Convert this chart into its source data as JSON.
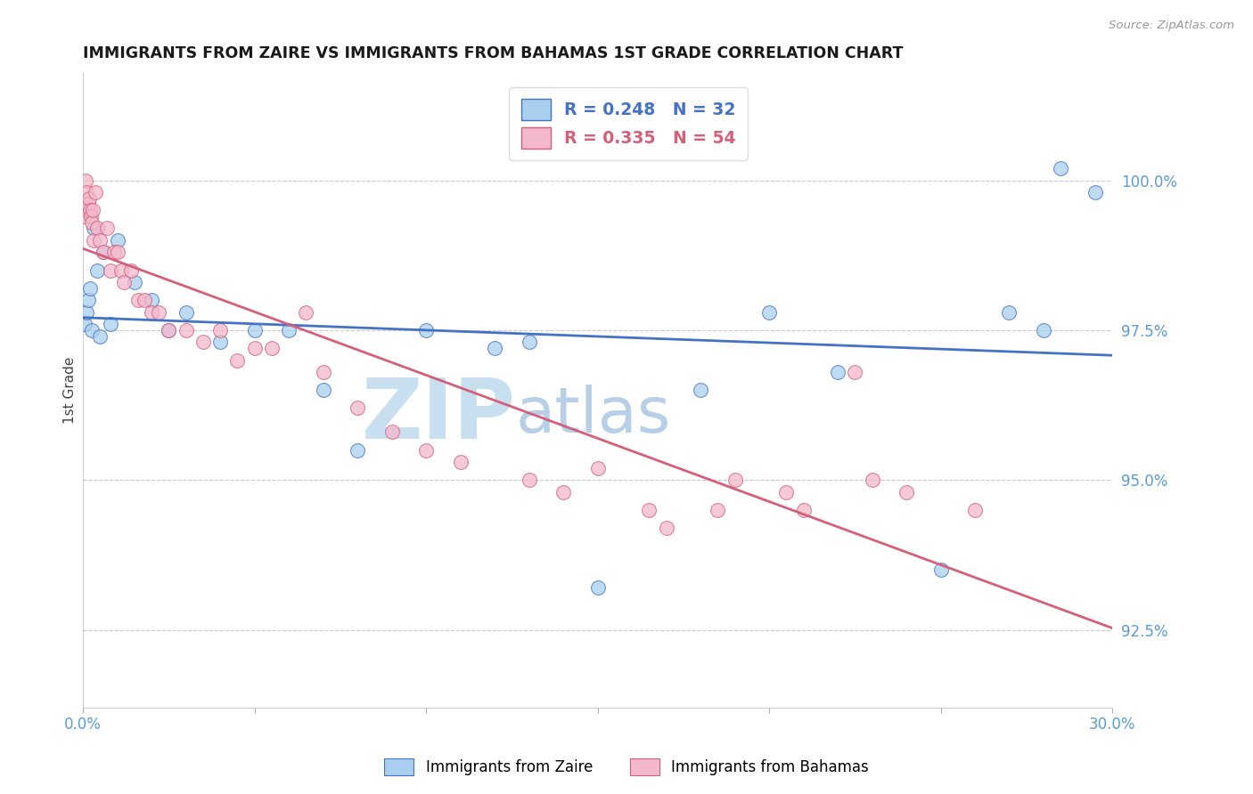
{
  "title": "IMMIGRANTS FROM ZAIRE VS IMMIGRANTS FROM BAHAMAS 1ST GRADE CORRELATION CHART",
  "source_text": "Source: ZipAtlas.com",
  "ylabel": "1st Grade",
  "xlim": [
    0.0,
    30.0
  ],
  "ylim": [
    91.2,
    101.8
  ],
  "xticks": [
    0.0,
    5.0,
    10.0,
    15.0,
    20.0,
    25.0,
    30.0
  ],
  "xticklabels": [
    "0.0%",
    "",
    "",
    "",
    "",
    "",
    "30.0%"
  ],
  "yticks_right": [
    100.0,
    97.5,
    95.0,
    92.5
  ],
  "ytick_labels_right": [
    "100.0%",
    "97.5%",
    "95.0%",
    "92.5%"
  ],
  "background_color": "#ffffff",
  "watermark_zip": "ZIP",
  "watermark_atlas": "atlas",
  "watermark_color_zip": "#c8dff0",
  "watermark_color_atlas": "#b8cfe8",
  "legend_zaire_label": "R = 0.248   N = 32",
  "legend_bahamas_label": "R = 0.335   N = 54",
  "legend_label1": "Immigrants from Zaire",
  "legend_label2": "Immigrants from Bahamas",
  "color_zaire": "#a8cfed",
  "color_bahamas": "#f4b8cc",
  "trendline_color_zaire": "#4472c4",
  "trendline_color_bahamas": "#d45f7a",
  "zaire_x": [
    0.05,
    0.1,
    0.15,
    0.2,
    0.25,
    0.3,
    0.4,
    0.5,
    0.6,
    0.8,
    1.0,
    1.5,
    2.0,
    2.5,
    3.0,
    4.0,
    5.0,
    6.0,
    7.0,
    8.0,
    10.0,
    12.0,
    13.0,
    15.0,
    18.0,
    20.0,
    22.0,
    25.0,
    27.0,
    28.0,
    28.5,
    29.5
  ],
  "zaire_y": [
    97.6,
    97.8,
    98.0,
    98.2,
    97.5,
    99.2,
    98.5,
    97.4,
    98.8,
    97.6,
    99.0,
    98.3,
    98.0,
    97.5,
    97.8,
    97.3,
    97.5,
    97.5,
    96.5,
    95.5,
    97.5,
    97.2,
    97.3,
    93.2,
    96.5,
    97.8,
    96.8,
    93.5,
    97.8,
    97.5,
    100.2,
    99.8
  ],
  "bahamas_x": [
    0.02,
    0.04,
    0.06,
    0.08,
    0.1,
    0.12,
    0.15,
    0.18,
    0.2,
    0.22,
    0.25,
    0.28,
    0.3,
    0.35,
    0.4,
    0.5,
    0.6,
    0.7,
    0.8,
    0.9,
    1.0,
    1.1,
    1.2,
    1.4,
    1.6,
    1.8,
    2.0,
    2.2,
    2.5,
    3.0,
    3.5,
    4.0,
    4.5,
    5.0,
    5.5,
    6.5,
    7.0,
    8.0,
    9.0,
    10.0,
    11.0,
    13.0,
    14.0,
    15.0,
    16.5,
    17.0,
    18.5,
    19.0,
    20.5,
    21.0,
    22.5,
    23.0,
    24.0,
    26.0
  ],
  "bahamas_y": [
    99.5,
    99.6,
    99.4,
    100.0,
    99.8,
    99.5,
    99.6,
    99.7,
    99.5,
    99.4,
    99.3,
    99.5,
    99.0,
    99.8,
    99.2,
    99.0,
    98.8,
    99.2,
    98.5,
    98.8,
    98.8,
    98.5,
    98.3,
    98.5,
    98.0,
    98.0,
    97.8,
    97.8,
    97.5,
    97.5,
    97.3,
    97.5,
    97.0,
    97.2,
    97.2,
    97.8,
    96.8,
    96.2,
    95.8,
    95.5,
    95.3,
    95.0,
    94.8,
    95.2,
    94.5,
    94.2,
    94.5,
    95.0,
    94.8,
    94.5,
    96.8,
    95.0,
    94.8,
    94.5
  ]
}
